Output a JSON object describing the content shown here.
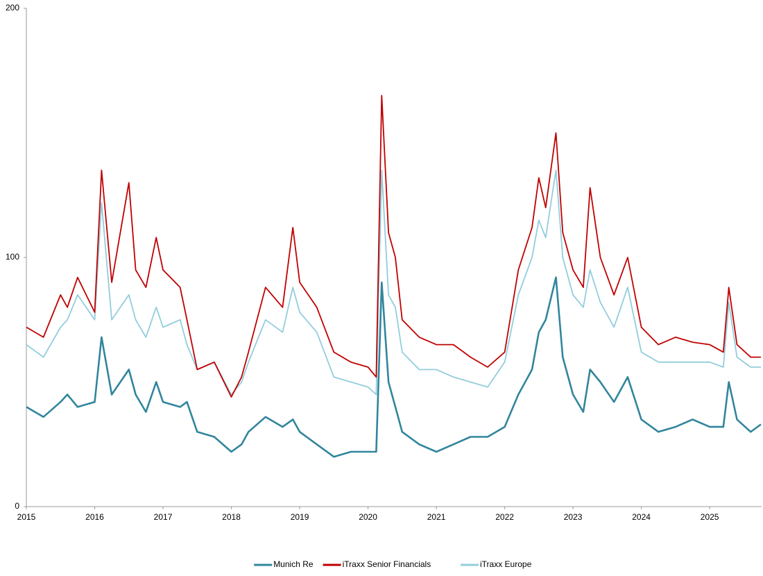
{
  "chart_data": {
    "type": "line",
    "x": [
      2015.0,
      2015.25,
      2015.5,
      2015.6,
      2015.75,
      2016.0,
      2016.1,
      2016.25,
      2016.5,
      2016.6,
      2016.75,
      2016.9,
      2017.0,
      2017.25,
      2017.35,
      2017.5,
      2017.75,
      2018.0,
      2018.15,
      2018.25,
      2018.5,
      2018.75,
      2018.9,
      2019.0,
      2019.25,
      2019.5,
      2019.75,
      2020.0,
      2020.12,
      2020.2,
      2020.3,
      2020.4,
      2020.5,
      2020.75,
      2021.0,
      2021.25,
      2021.5,
      2021.75,
      2022.0,
      2022.2,
      2022.4,
      2022.5,
      2022.6,
      2022.75,
      2022.85,
      2023.0,
      2023.15,
      2023.25,
      2023.4,
      2023.6,
      2023.8,
      2024.0,
      2024.25,
      2024.5,
      2024.75,
      2025.0,
      2025.2,
      2025.28,
      2025.4,
      2025.6,
      2025.75
    ],
    "series": [
      {
        "name": "Munich Re",
        "color": "#31859c",
        "width": 2.6,
        "values": [
          40,
          36,
          42,
          45,
          40,
          42,
          68,
          45,
          55,
          45,
          38,
          50,
          42,
          40,
          42,
          30,
          28,
          22,
          25,
          30,
          36,
          32,
          35,
          30,
          25,
          20,
          22,
          22,
          22,
          90,
          50,
          40,
          30,
          25,
          22,
          25,
          28,
          28,
          32,
          45,
          55,
          70,
          75,
          92,
          60,
          45,
          38,
          55,
          50,
          42,
          52,
          35,
          30,
          32,
          35,
          32,
          32,
          50,
          35,
          30,
          33
        ]
      },
      {
        "name": "iTraxx Senior Financials",
        "color": "#c00000",
        "width": 1.8,
        "values": [
          72,
          68,
          85,
          80,
          92,
          78,
          135,
          90,
          130,
          95,
          88,
          108,
          95,
          88,
          75,
          55,
          58,
          44,
          52,
          62,
          88,
          80,
          112,
          90,
          80,
          62,
          58,
          56,
          52,
          165,
          110,
          100,
          75,
          68,
          65,
          65,
          60,
          56,
          62,
          95,
          112,
          132,
          120,
          150,
          110,
          95,
          88,
          128,
          100,
          85,
          100,
          72,
          65,
          68,
          66,
          65,
          62,
          88,
          65,
          60,
          60
        ]
      },
      {
        "name": "iTraxx Europe",
        "color": "#92cddc",
        "width": 1.8,
        "values": [
          65,
          60,
          72,
          75,
          85,
          75,
          122,
          75,
          85,
          75,
          68,
          80,
          72,
          75,
          65,
          55,
          58,
          45,
          50,
          58,
          75,
          70,
          88,
          78,
          70,
          52,
          50,
          48,
          45,
          135,
          85,
          80,
          62,
          55,
          55,
          52,
          50,
          48,
          58,
          85,
          100,
          115,
          108,
          135,
          100,
          85,
          80,
          95,
          82,
          72,
          88,
          62,
          58,
          58,
          58,
          58,
          56,
          82,
          60,
          56,
          56
        ]
      }
    ],
    "xlim": [
      2015,
      2025.76
    ],
    "xticks": [
      2015,
      2016,
      2017,
      2018,
      2019,
      2020,
      2021,
      2022,
      2023,
      2024,
      2025
    ],
    "ylim": [
      0,
      200
    ],
    "yticks": [
      0,
      100,
      200
    ],
    "grid": false,
    "legend": "bottom"
  }
}
